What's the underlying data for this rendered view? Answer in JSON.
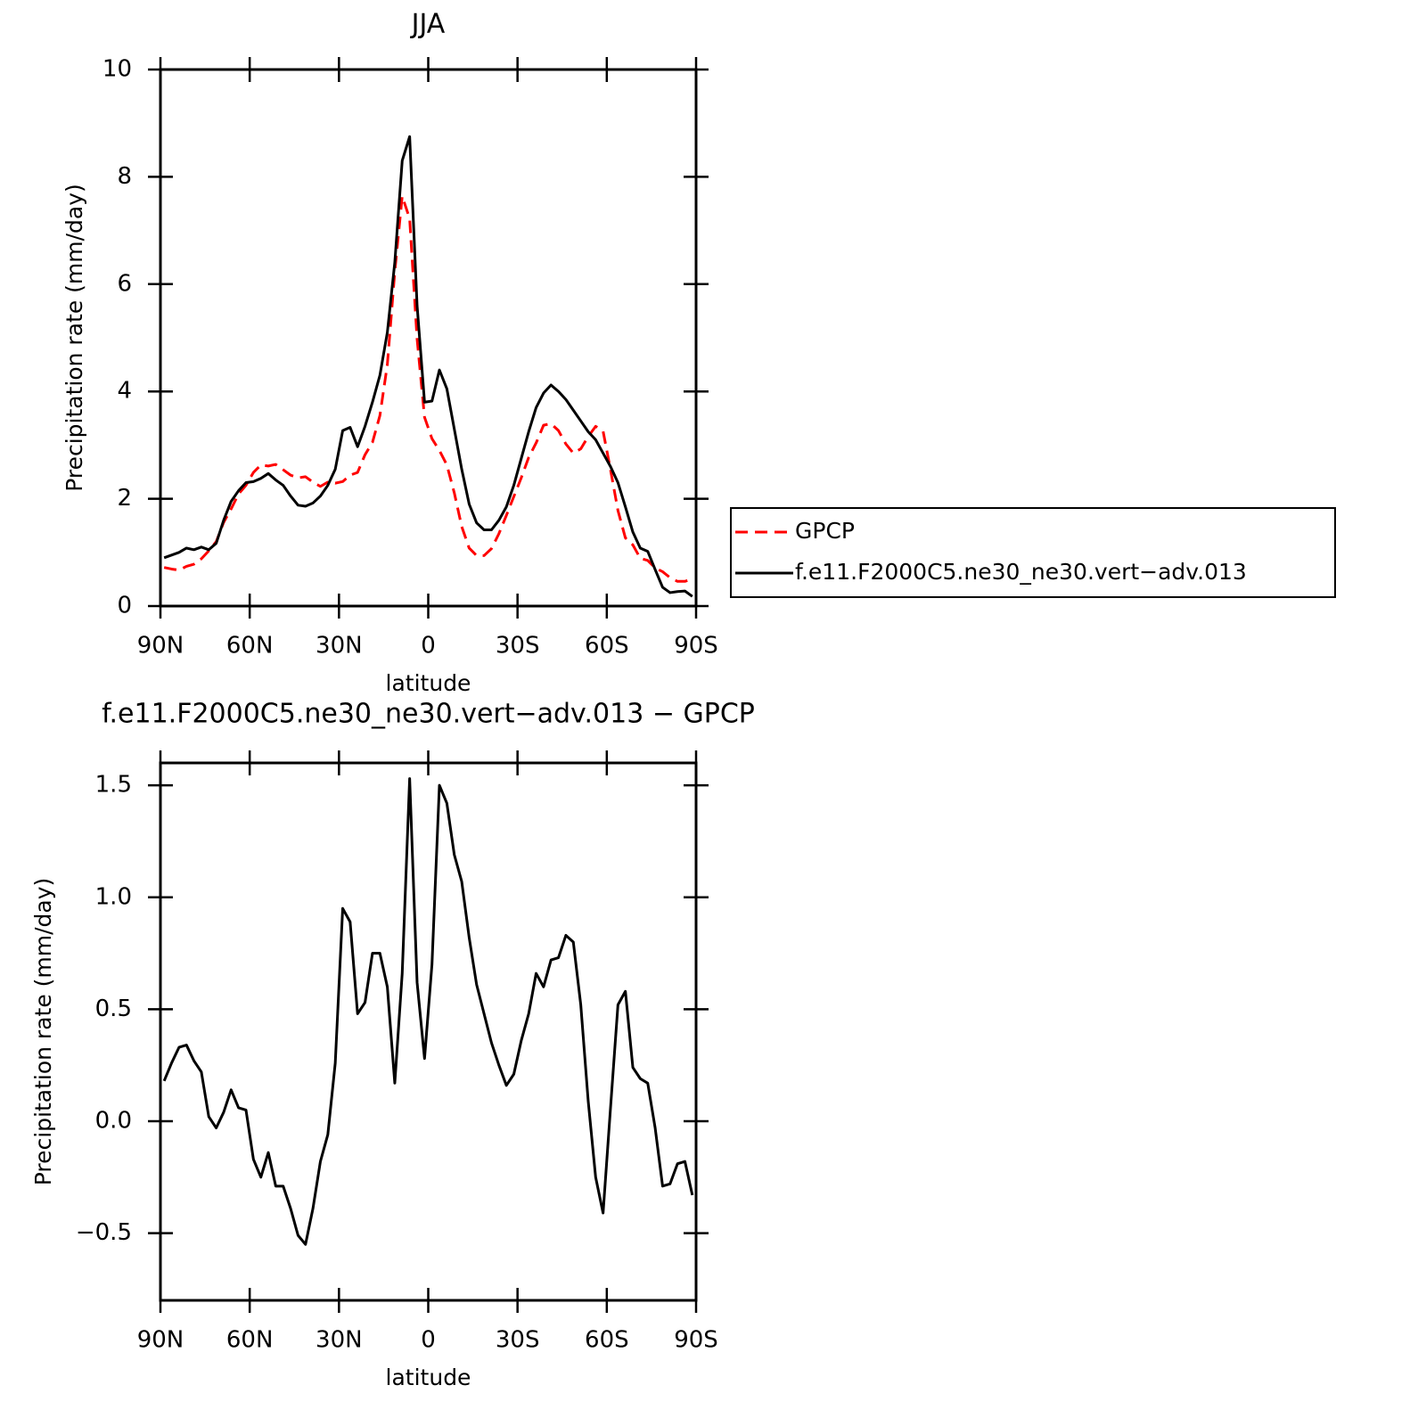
{
  "chart_data": [
    {
      "type": "line",
      "title": "JJA",
      "x_label": "latitude",
      "y_label": "Precipitation rate (mm/day)",
      "x": [
        88.75,
        86.25,
        83.75,
        81.25,
        78.75,
        76.25,
        73.75,
        71.25,
        68.75,
        66.25,
        63.75,
        61.25,
        58.75,
        56.25,
        53.75,
        51.25,
        48.75,
        46.25,
        43.75,
        41.25,
        38.75,
        36.25,
        33.75,
        31.25,
        28.75,
        26.25,
        23.75,
        21.25,
        18.75,
        16.25,
        13.75,
        11.25,
        8.75,
        6.25,
        3.75,
        1.25,
        -1.25,
        -3.75,
        -6.25,
        -8.75,
        -11.25,
        -13.75,
        -16.25,
        -18.75,
        -21.25,
        -23.75,
        -26.25,
        -28.75,
        -31.25,
        -33.75,
        -36.25,
        -38.75,
        -41.25,
        -43.75,
        -46.25,
        -48.75,
        -51.25,
        -53.75,
        -56.25,
        -58.75,
        -61.25,
        -63.75,
        -66.25,
        -68.75,
        -71.25,
        -73.75,
        -76.25,
        -78.75,
        -81.25,
        -83.75,
        -86.25,
        -88.75
      ],
      "series": [
        {
          "name": "GPCP",
          "color": "#ff0000",
          "linestyle": "dashed",
          "values": [
            0.72,
            0.69,
            0.67,
            0.74,
            0.78,
            0.88,
            1.03,
            1.2,
            1.56,
            1.81,
            2.09,
            2.25,
            2.49,
            2.63,
            2.61,
            2.64,
            2.54,
            2.44,
            2.39,
            2.41,
            2.31,
            2.23,
            2.31,
            2.29,
            2.32,
            2.44,
            2.49,
            2.82,
            3.05,
            3.55,
            4.5,
            6.23,
            7.64,
            7.22,
            4.98,
            3.52,
            3.12,
            2.9,
            2.63,
            2.11,
            1.48,
            1.08,
            0.94,
            0.94,
            1.07,
            1.35,
            1.69,
            2.04,
            2.39,
            2.77,
            3.04,
            3.37,
            3.4,
            3.27,
            3.02,
            2.85,
            2.93,
            3.16,
            3.35,
            3.26,
            2.54,
            1.78,
            1.27,
            1.14,
            0.89,
            0.85,
            0.71,
            0.64,
            0.53,
            0.46,
            0.46,
            0.51
          ]
        },
        {
          "name": "f.e11.F2000C5.ne30_ne30.vert−adv.013",
          "color": "#000000",
          "linestyle": "solid",
          "values": [
            0.9,
            0.95,
            1.0,
            1.08,
            1.05,
            1.1,
            1.05,
            1.17,
            1.6,
            1.95,
            2.15,
            2.3,
            2.32,
            2.38,
            2.47,
            2.35,
            2.25,
            2.05,
            1.88,
            1.86,
            1.92,
            2.05,
            2.25,
            2.55,
            3.27,
            3.33,
            2.97,
            3.35,
            3.8,
            4.3,
            5.1,
            6.4,
            8.3,
            8.75,
            5.6,
            3.8,
            3.82,
            4.4,
            4.05,
            3.3,
            2.55,
            1.9,
            1.55,
            1.42,
            1.42,
            1.6,
            1.85,
            2.25,
            2.75,
            3.25,
            3.7,
            3.97,
            4.12,
            4.0,
            3.85,
            3.65,
            3.45,
            3.25,
            3.1,
            2.85,
            2.6,
            2.3,
            1.85,
            1.38,
            1.08,
            1.02,
            0.68,
            0.35,
            0.25,
            0.27,
            0.28,
            0.18
          ]
        }
      ],
      "xlim": [
        90,
        -90
      ],
      "xticks": [
        {
          "value": 90,
          "label": "90N"
        },
        {
          "value": 60,
          "label": "60N"
        },
        {
          "value": 30,
          "label": "30N"
        },
        0,
        {
          "value": -30,
          "label": "30S"
        },
        {
          "value": -60,
          "label": "60S"
        },
        {
          "value": -90,
          "label": "90S"
        }
      ],
      "ylim": [
        0,
        10
      ],
      "yticks": [
        0,
        2,
        4,
        6,
        8,
        10
      ],
      "legend": "right"
    },
    {
      "type": "line",
      "title": "f.e11.F2000C5.ne30_ne30.vert−adv.013 − GPCP",
      "x_label": "latitude",
      "y_label": "Precipitation rate (mm/day)",
      "x": [
        88.75,
        86.25,
        83.75,
        81.25,
        78.75,
        76.25,
        73.75,
        71.25,
        68.75,
        66.25,
        63.75,
        61.25,
        58.75,
        56.25,
        53.75,
        51.25,
        48.75,
        46.25,
        43.75,
        41.25,
        38.75,
        36.25,
        33.75,
        31.25,
        28.75,
        26.25,
        23.75,
        21.25,
        18.75,
        16.25,
        13.75,
        11.25,
        8.75,
        6.25,
        3.75,
        1.25,
        -1.25,
        -3.75,
        -6.25,
        -8.75,
        -11.25,
        -13.75,
        -16.25,
        -18.75,
        -21.25,
        -23.75,
        -26.25,
        -28.75,
        -31.25,
        -33.75,
        -36.25,
        -38.75,
        -41.25,
        -43.75,
        -46.25,
        -48.75,
        -51.25,
        -53.75,
        -56.25,
        -58.75,
        -61.25,
        -63.75,
        -66.25,
        -68.75,
        -71.25,
        -73.75,
        -76.25,
        -78.75,
        -81.25,
        -83.75,
        -86.25,
        -88.75
      ],
      "color": "#000000",
      "values": [
        0.18,
        0.26,
        0.33,
        0.34,
        0.27,
        0.22,
        0.02,
        -0.03,
        0.04,
        0.14,
        0.06,
        0.05,
        -0.17,
        -0.25,
        -0.14,
        -0.29,
        -0.29,
        -0.39,
        -0.51,
        -0.55,
        -0.39,
        -0.18,
        -0.06,
        0.26,
        0.95,
        0.89,
        0.48,
        0.53,
        0.75,
        0.75,
        0.6,
        0.17,
        0.66,
        1.53,
        0.62,
        0.28,
        0.7,
        1.5,
        1.42,
        1.19,
        1.07,
        0.82,
        0.61,
        0.48,
        0.35,
        0.25,
        0.16,
        0.21,
        0.36,
        0.48,
        0.66,
        0.6,
        0.72,
        0.73,
        0.83,
        0.8,
        0.52,
        0.09,
        -0.25,
        -0.41,
        0.06,
        0.52,
        0.58,
        0.24,
        0.19,
        0.17,
        -0.03,
        -0.29,
        -0.28,
        -0.19,
        -0.18,
        -0.33
      ],
      "xlim": [
        90,
        -90
      ],
      "xticks": [
        {
          "value": 90,
          "label": "90N"
        },
        {
          "value": 60,
          "label": "60N"
        },
        {
          "value": 30,
          "label": "30N"
        },
        0,
        {
          "value": -30,
          "label": "30S"
        },
        {
          "value": -60,
          "label": "60S"
        },
        {
          "value": -90,
          "label": "90S"
        }
      ],
      "ylim": [
        -0.8,
        1.6
      ],
      "yticks": [
        {
          "value": -0.5,
          "label": "−0.5"
        },
        {
          "value": 0,
          "label": "0.0"
        },
        {
          "value": 0.5,
          "label": "0.5"
        },
        {
          "value": 1,
          "label": "1.0"
        },
        {
          "value": 1.5,
          "label": "1.5"
        }
      ]
    }
  ]
}
